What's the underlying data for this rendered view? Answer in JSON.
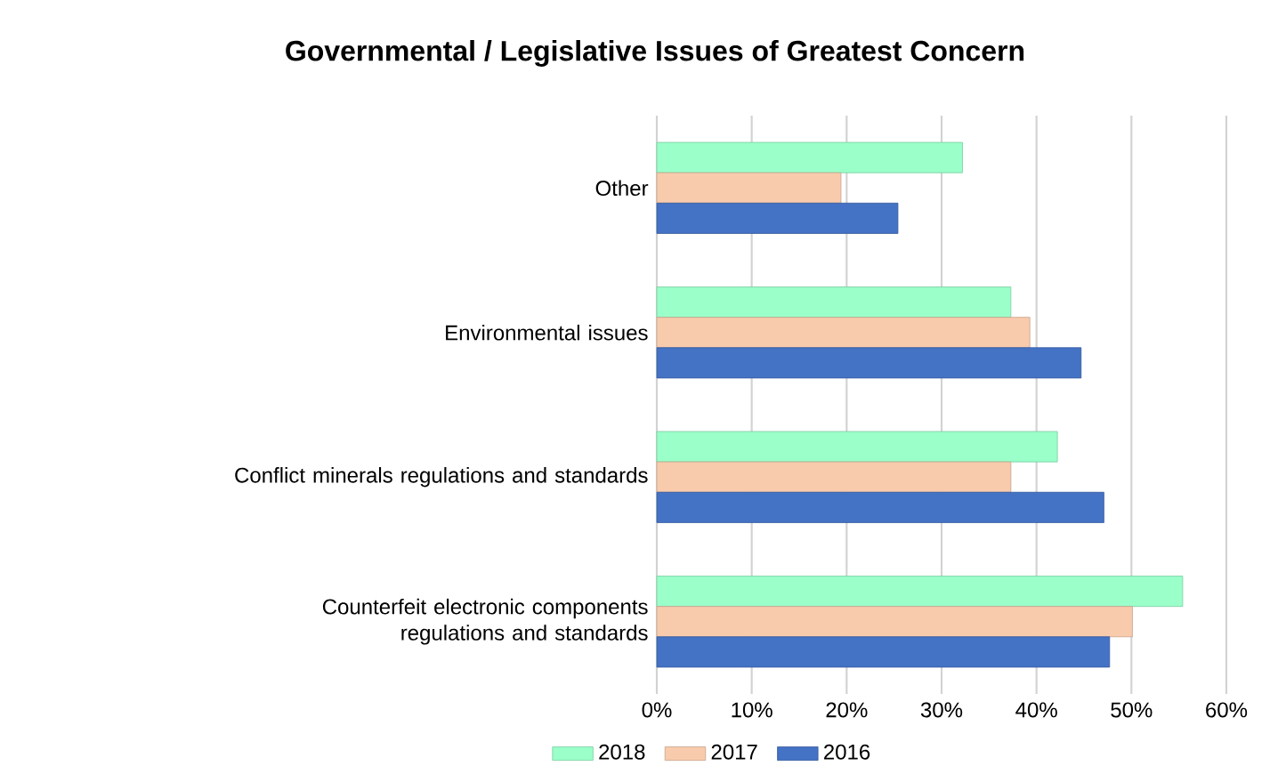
{
  "chart_data": {
    "type": "bar",
    "orientation": "horizontal",
    "title": "**Governmental / Legislative Issues of Greatest Concern**",
    "categories": [
      "Other",
      "Environmental issues",
      "Conflict minerals regulations and standards",
      "Counterfeit electronic components regulations and standards"
    ],
    "series": [
      {
        "name": "2018",
        "color": "#9affc9",
        "values": [
          32.2,
          37.3,
          42.2,
          55.4
        ]
      },
      {
        "name": "2017",
        "color": "#f8cbad",
        "values": [
          19.4,
          39.3,
          37.3,
          50.1
        ]
      },
      {
        "name": "2016",
        "color": "#4472c4",
        "values": [
          25.4,
          44.7,
          47.1,
          47.7
        ]
      }
    ],
    "xlim": [
      0,
      60
    ],
    "xticks": [
      {
        "value": 0,
        "label": "0%"
      },
      {
        "value": 10,
        "label": "10%"
      },
      {
        "value": 20,
        "label": "20%"
      },
      {
        "value": 30,
        "label": "30%"
      },
      {
        "value": 40,
        "label": "40%"
      },
      {
        "value": 50,
        "label": "50%"
      },
      {
        "value": 60,
        "label": "60%"
      }
    ],
    "grid": "x",
    "legend": "bottom"
  }
}
